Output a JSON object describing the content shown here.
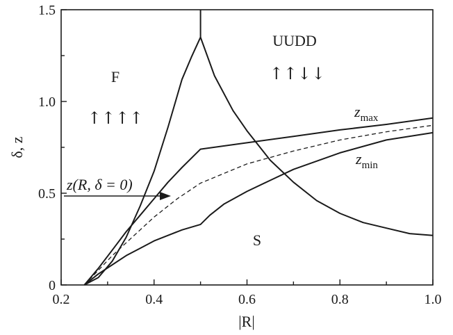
{
  "chart_data": {
    "type": "line",
    "xlabel": "|R|",
    "ylabel": "δ, z",
    "xlim": [
      0.2,
      1.0
    ],
    "ylim": [
      0,
      1.5
    ],
    "x_ticks": [
      "0.2",
      "0.4",
      "0.6",
      "0.8",
      "1.0"
    ],
    "y_ticks": [
      "0",
      "0.5",
      "1.0",
      "1.5"
    ],
    "regions": [
      {
        "name": "F",
        "spins": "↑↑↑↑"
      },
      {
        "name": "UUDD",
        "spins": "↑↑↓↓"
      },
      {
        "name": "S",
        "spins": ""
      }
    ],
    "annotation": {
      "text": "z(R, δ = 0)"
    },
    "series": [
      {
        "role": "boundary-F-rising",
        "x": [
          0.25,
          0.28,
          0.31,
          0.34,
          0.37,
          0.4,
          0.43,
          0.46,
          0.48,
          0.5
        ],
        "y": [
          0,
          0.04,
          0.13,
          0.26,
          0.43,
          0.62,
          0.86,
          1.12,
          1.24,
          1.35
        ]
      },
      {
        "role": "boundary-vertical",
        "x": [
          0.5,
          0.5
        ],
        "y": [
          1.35,
          1.5
        ]
      },
      {
        "role": "boundary-S-falling",
        "x": [
          0.5,
          0.53,
          0.57,
          0.6,
          0.65,
          0.7,
          0.75,
          0.8,
          0.85,
          0.9,
          0.95,
          1.0
        ],
        "y": [
          1.35,
          1.14,
          0.95,
          0.84,
          0.68,
          0.56,
          0.46,
          0.39,
          0.34,
          0.31,
          0.28,
          0.27
        ]
      },
      {
        "name": "z_max",
        "x": [
          0.25,
          0.28,
          0.31,
          0.34,
          0.37,
          0.4,
          0.43,
          0.46,
          0.5,
          0.6,
          0.7,
          0.8,
          0.9,
          1.0
        ],
        "y": [
          0,
          0.09,
          0.19,
          0.29,
          0.38,
          0.47,
          0.56,
          0.64,
          0.74,
          0.775,
          0.81,
          0.845,
          0.875,
          0.91
        ]
      },
      {
        "name": "z_min",
        "x": [
          0.25,
          0.28,
          0.31,
          0.34,
          0.37,
          0.4,
          0.43,
          0.46,
          0.5,
          0.52,
          0.55,
          0.6,
          0.65,
          0.7,
          0.8,
          0.9,
          1.0
        ],
        "y": [
          0,
          0.06,
          0.11,
          0.16,
          0.2,
          0.24,
          0.27,
          0.3,
          0.33,
          0.38,
          0.44,
          0.51,
          0.57,
          0.63,
          0.72,
          0.79,
          0.83
        ]
      },
      {
        "name": "z(R, δ = 0)",
        "dashed": true,
        "x": [
          0.25,
          0.28,
          0.31,
          0.34,
          0.37,
          0.4,
          0.45,
          0.5,
          0.6,
          0.7,
          0.8,
          0.9,
          1.0
        ],
        "y": [
          0,
          0.08,
          0.16,
          0.23,
          0.3,
          0.37,
          0.47,
          0.555,
          0.66,
          0.73,
          0.79,
          0.835,
          0.87
        ]
      }
    ]
  },
  "labels": {
    "region_f": "F",
    "region_f_spins": "↑↑↑↑",
    "region_uudd": "UUDD",
    "region_uudd_spins": "↑↑↓↓",
    "region_s": "S",
    "zmax_main": "z",
    "zmax_sub": "max",
    "zmin_main": "z",
    "zmin_sub": "min",
    "annotation": "z(R, δ = 0)"
  }
}
